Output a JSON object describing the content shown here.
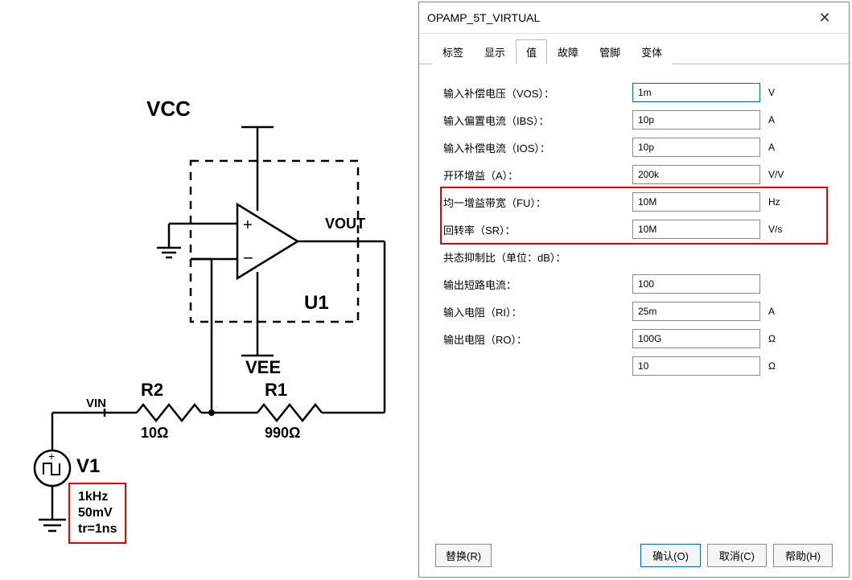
{
  "schematic": {
    "vcc_label": "VCC",
    "vee_label": "VEE",
    "vout_label": "VOUT",
    "vin_label": "VIN",
    "u1_label": "U1",
    "r1_label": "R1",
    "r1_value": "990Ω",
    "r2_label": "R2",
    "r2_value": "10Ω",
    "v1_label": "V1",
    "v1_params": [
      "1kHz",
      "50mV",
      "tr=1ns"
    ],
    "highlight_box_color": "#e60000",
    "wire_color": "#000000",
    "dashed_box_color": "#000000"
  },
  "dialog": {
    "title": "OPAMP_5T_VIRTUAL",
    "close": "✕",
    "tabs": [
      "标签",
      "显示",
      "值",
      "故障",
      "管脚",
      "变体"
    ],
    "active_tab": 2,
    "rows": [
      {
        "label": "输入补偿电压（VOS）：",
        "value": "1m",
        "unit": "V",
        "hl": false
      },
      {
        "label": "输入偏置电流（IBS）：",
        "value": "10p",
        "unit": "A",
        "hl": false
      },
      {
        "label": "输入补偿电流（IOS）：",
        "value": "10p",
        "unit": "A",
        "hl": false
      },
      {
        "label": "开环增益（A）：",
        "value": "200k",
        "unit": "V/V",
        "hl": false
      },
      {
        "label": "均一增益带宽（FU）：",
        "value": "10M",
        "unit": "Hz",
        "hl": true
      },
      {
        "label": "回转率（SR）：",
        "value": "10M",
        "unit": "V/s",
        "hl": true
      },
      {
        "label": "共态抑制比（单位：dB）：",
        "value": "",
        "unit": "",
        "hl": false
      },
      {
        "label": "输出短路电流：",
        "value": "100",
        "unit": "",
        "hl": false
      },
      {
        "label": "输入电阻（RI）：",
        "value": "25m",
        "unit": "A",
        "hl": false
      },
      {
        "label": "输出电阻（RO）：",
        "value": "100G",
        "unit": "Ω",
        "hl": false
      },
      {
        "label": "",
        "value": "10",
        "unit": "Ω",
        "hl": false
      }
    ],
    "highlighted_rows": [
      4,
      5
    ],
    "footer": {
      "replace": "替换(R)",
      "ok": "确认(O)",
      "cancel": "取消(C)",
      "help": "帮助(H)"
    }
  }
}
